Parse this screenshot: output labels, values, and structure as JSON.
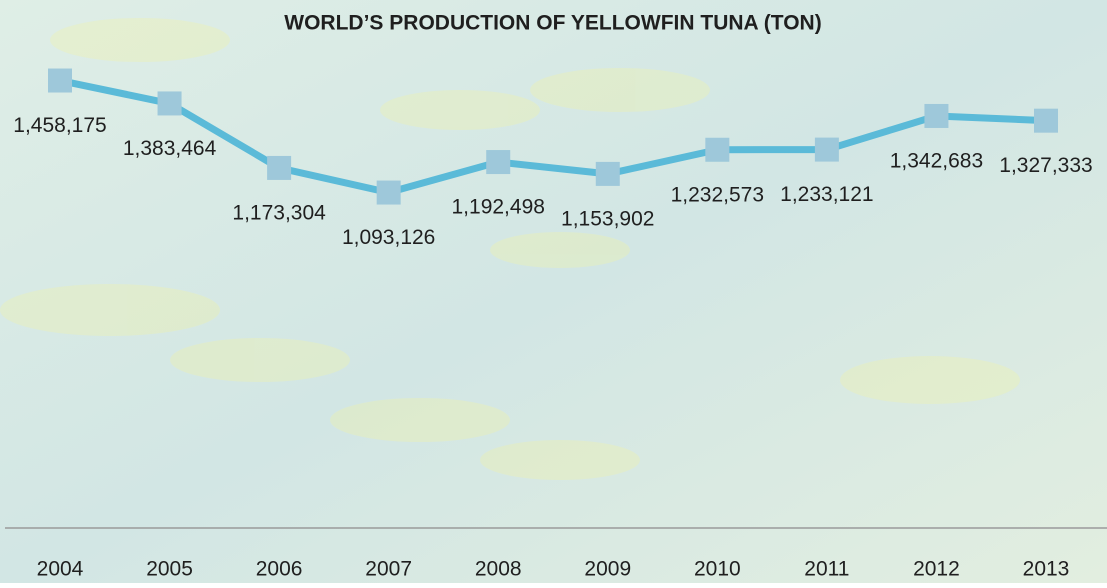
{
  "chart_data": {
    "type": "line",
    "title": "WORLD’S PRODUCTION OF YELLOWFIN TUNA (TON)",
    "categories": [
      "2004",
      "2005",
      "2006",
      "2007",
      "2008",
      "2009",
      "2010",
      "2011",
      "2012",
      "2013"
    ],
    "series": [
      {
        "color": "#5bbad8",
        "marker_color": "#9ec8da",
        "values": [
          1458175,
          1383464,
          1173304,
          1093126,
          1192498,
          1153902,
          1232573,
          1233121,
          1342683,
          1327333
        ],
        "value_labels": [
          "1,458,175",
          "1,383,464",
          "1,173,304",
          "1,093,126",
          "1,192,498",
          "1,153,902",
          "1,232,573",
          "1,233,121",
          "1,342,683",
          "1,327,333"
        ]
      }
    ],
    "ylim": [
      0,
      1600000
    ]
  }
}
